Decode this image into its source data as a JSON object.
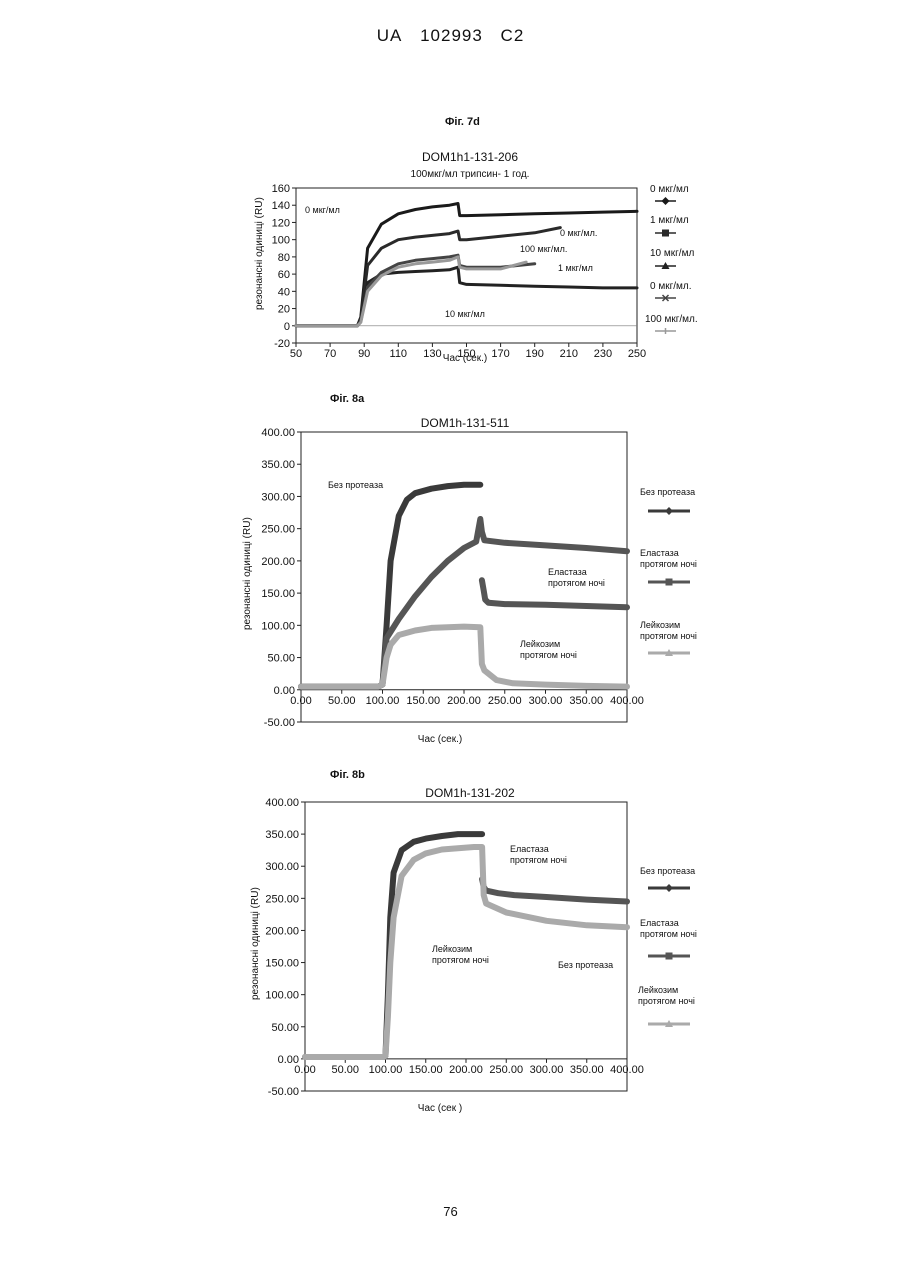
{
  "header": {
    "office": "UA",
    "number": "102993",
    "kind": "C2"
  },
  "page_number": "76",
  "figures": {
    "f7d": {
      "label": "Фіг. 7d"
    },
    "f8a": {
      "label": "Фіг. 8a"
    },
    "f8b": {
      "label": "Фіг. 8b"
    }
  },
  "chart_data": [
    {
      "id": "f7d",
      "type": "line",
      "title": "DOM1h1-131-206",
      "subtitle": "100мкг/мл  трипсин- 1 год.",
      "xlabel": "Час (сек.)",
      "ylabel": "резонансні одиниці  (RU)",
      "xlim": [
        50,
        250
      ],
      "ylim": [
        -20,
        160
      ],
      "x_ticks": [
        "50",
        "70",
        "90",
        "110",
        "130",
        "150",
        "170",
        "190",
        "210",
        "230",
        "250"
      ],
      "y_ticks": [
        "160",
        "140",
        "120",
        "100",
        "80",
        "60",
        "40",
        "20",
        "0",
        "-20"
      ],
      "legend": [
        "0 мкг/мл",
        "1 мкг/мл",
        "10 мкг/мл",
        "0 мкг/мл.",
        "100 мкг/мл."
      ],
      "annotations": [
        "0 мкг/мл",
        "0 мкг/мл.",
        "100 мкг/мл.",
        "1 мкг/мл",
        "10 мкг/мл"
      ],
      "series": [
        {
          "name": "0 мкг/мл",
          "color": "#1a1a1a",
          "x": [
            50,
            86,
            88,
            92,
            100,
            110,
            120,
            130,
            140,
            145,
            146,
            150,
            170,
            190,
            210,
            230,
            250
          ],
          "y": [
            0,
            0,
            10,
            90,
            118,
            130,
            135,
            138,
            140,
            142,
            128,
            128,
            129,
            130,
            131,
            132,
            133
          ]
        },
        {
          "name": "1 мкг/мл",
          "color": "#2a2a2a",
          "x": [
            50,
            86,
            88,
            92,
            100,
            110,
            120,
            130,
            140,
            145,
            146,
            150,
            170,
            190,
            205
          ],
          "y": [
            0,
            0,
            8,
            70,
            90,
            100,
            103,
            105,
            107,
            110,
            100,
            100,
            104,
            108,
            114
          ]
        },
        {
          "name": "10 мкг/мл",
          "color": "#222222",
          "x": [
            50,
            86,
            88,
            92,
            100,
            110,
            120,
            130,
            140,
            145,
            146,
            150,
            170,
            190,
            210,
            230,
            250
          ],
          "y": [
            0,
            0,
            5,
            50,
            60,
            62,
            63,
            64,
            65,
            68,
            50,
            48,
            47,
            46,
            45,
            44,
            44
          ]
        },
        {
          "name": "0 мкг/мл.",
          "color": "#444444",
          "x": [
            50,
            86,
            88,
            92,
            100,
            110,
            120,
            130,
            140,
            145,
            146,
            150,
            170,
            190
          ],
          "y": [
            0,
            0,
            5,
            45,
            62,
            72,
            76,
            78,
            80,
            82,
            70,
            68,
            68,
            72
          ]
        },
        {
          "name": "100 мкг/мл.",
          "color": "#999999",
          "x": [
            50,
            86,
            88,
            92,
            100,
            110,
            120,
            130,
            140,
            145,
            146,
            150,
            170,
            185
          ],
          "y": [
            0,
            0,
            4,
            40,
            58,
            68,
            72,
            74,
            76,
            80,
            68,
            66,
            66,
            74
          ]
        }
      ]
    },
    {
      "id": "f8a",
      "type": "line",
      "title": "DOM1h-131-511",
      "xlabel": "Час (сек.)",
      "ylabel": "резонансні одиниці   (RU)",
      "xlim": [
        0,
        400
      ],
      "ylim": [
        -50,
        400
      ],
      "x_ticks": [
        "0.00",
        "50.00",
        "100.00",
        "150.00",
        "200.00",
        "250.00",
        "300.00",
        "350.00",
        "400.00"
      ],
      "y_ticks": [
        "400.00",
        "350.00",
        "300.00",
        "250.00",
        "200.00",
        "150.00",
        "100.00",
        "50.00",
        "0.00",
        "-50.00"
      ],
      "legend": [
        "Без протеаза",
        "Еластаза протягом ночі",
        "Лейкозим протягом ночі"
      ],
      "annotations": [
        "Без протеаза",
        "Еластаза протягом ночі",
        "Лейкозим протягом ночі"
      ],
      "series": [
        {
          "name": "Без протеаза",
          "color": "#3a3a3a",
          "x": [
            0,
            95,
            100,
            105,
            110,
            120,
            130,
            140,
            160,
            180,
            200,
            220
          ],
          "y": [
            5,
            5,
            8,
            100,
            200,
            270,
            295,
            305,
            312,
            316,
            318,
            318
          ]
        },
        {
          "name": "Еластаза протягом ночі",
          "color": "#555555",
          "x": [
            0,
            95,
            100,
            105,
            120,
            140,
            160,
            180,
            200,
            215,
            220,
            222,
            225,
            250,
            300,
            350,
            400
          ],
          "y": [
            5,
            5,
            8,
            80,
            110,
            145,
            175,
            200,
            220,
            230,
            265,
            245,
            232,
            228,
            224,
            220,
            215
          ]
        },
        {
          "name": "Лейкозим протягом ночі",
          "color": "#aaaaaa",
          "x": [
            0,
            95,
            100,
            105,
            110,
            120,
            140,
            160,
            180,
            200,
            220,
            222,
            225,
            240,
            260,
            300,
            350,
            400
          ],
          "y": [
            5,
            5,
            8,
            50,
            70,
            85,
            92,
            96,
            97,
            98,
            97,
            40,
            30,
            15,
            10,
            8,
            6,
            5
          ]
        },
        {
          "name": "Еластаза протягом ночі (2)",
          "color": "#555555",
          "x": [
            222,
            224,
            226,
            230,
            250,
            300,
            350,
            400
          ],
          "y": [
            170,
            155,
            140,
            135,
            133,
            132,
            130,
            128
          ]
        }
      ]
    },
    {
      "id": "f8b",
      "type": "line",
      "title": "DOM1h-131-202",
      "xlabel": "Час (сек )",
      "ylabel": "резонансні одиниці   (RU)",
      "xlim": [
        0,
        400
      ],
      "ylim": [
        -50,
        400
      ],
      "x_ticks": [
        "0.00",
        "50.00",
        "100.00",
        "150.00",
        "200.00",
        "250.00",
        "300.00",
        "350.00",
        "400.00"
      ],
      "y_ticks": [
        "400.00",
        "350.00",
        "300.00",
        "250.00",
        "200.00",
        "150.00",
        "100.00",
        "50.00",
        "0.00",
        "-50.00"
      ],
      "legend": [
        "Без протеаза",
        "Еластаза протягом ночі",
        "Лейкозим протягом ночі"
      ],
      "annotations": [
        "Еластаза протягом ночі",
        "Лейкозим протягом ночі",
        "Без протеаза"
      ],
      "series": [
        {
          "name": "Без протеаза",
          "color": "#3a3a3a",
          "x": [
            0,
            98,
            100,
            103,
            106,
            110,
            120,
            135,
            150,
            170,
            190,
            210,
            220
          ],
          "y": [
            3,
            3,
            5,
            100,
            220,
            290,
            325,
            338,
            343,
            347,
            350,
            350,
            350
          ]
        },
        {
          "name": "Еластаза протягом ночі",
          "color": "#555555",
          "x": [
            220,
            222,
            225,
            240,
            260,
            300,
            350,
            400
          ],
          "y": [
            280,
            268,
            262,
            258,
            255,
            252,
            248,
            245
          ]
        },
        {
          "name": "Лейкозим протягом ночі",
          "color": "#aaaaaa",
          "x": [
            0,
            98,
            100,
            103,
            106,
            110,
            120,
            135,
            150,
            170,
            190,
            210,
            220,
            222,
            225,
            250,
            300,
            350,
            400
          ],
          "y": [
            3,
            3,
            5,
            65,
            150,
            220,
            285,
            310,
            320,
            326,
            328,
            330,
            330,
            255,
            242,
            228,
            215,
            208,
            205
          ]
        }
      ]
    }
  ]
}
